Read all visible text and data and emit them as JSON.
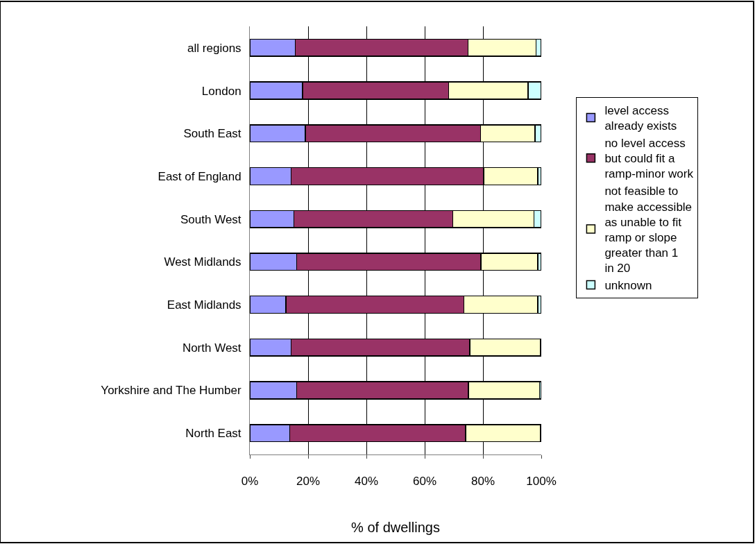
{
  "chart_data": {
    "type": "bar",
    "orientation": "horizontal",
    "stacked": true,
    "categories": [
      "all regions",
      "London",
      "South East",
      "East of England",
      "South West",
      "West Midlands",
      "East Midlands",
      "North West",
      "Yorkshire and The Humber",
      "North East"
    ],
    "series": [
      {
        "name": "level access already exists",
        "color": "#9999ff",
        "values": [
          15.6,
          18.1,
          19.0,
          14.2,
          15.1,
          16.1,
          12.4,
          14.2,
          16.1,
          13.7
        ]
      },
      {
        "name": "no level access but could fit a ramp-minor work",
        "color": "#993366",
        "values": [
          59.3,
          50.1,
          60.2,
          66.0,
          54.5,
          63.2,
          61.1,
          61.3,
          58.9,
          60.3
        ]
      },
      {
        "name": "not feasible to make accessible as unable to fit ramp or slope greater than 1 in 20",
        "color": "#ffffcc",
        "values": [
          23.3,
          27.3,
          18.6,
          18.6,
          27.9,
          19.5,
          25.3,
          24.2,
          24.4,
          25.7
        ]
      },
      {
        "name": "unknown",
        "color": "#ccffff",
        "values": [
          1.8,
          4.5,
          2.2,
          1.2,
          2.5,
          1.2,
          1.2,
          0.3,
          0.6,
          0.3
        ]
      }
    ],
    "xlabel": "% of dwellings",
    "xlim": [
      0,
      100
    ],
    "xticks": [
      {
        "value": 0,
        "label": "0%"
      },
      {
        "value": 20,
        "label": "20%"
      },
      {
        "value": 40,
        "label": "40%"
      },
      {
        "value": 60,
        "label": "60%"
      },
      {
        "value": 80,
        "label": "80%"
      },
      {
        "value": 100,
        "label": "100%"
      }
    ],
    "grid": "x",
    "legend": "right"
  }
}
